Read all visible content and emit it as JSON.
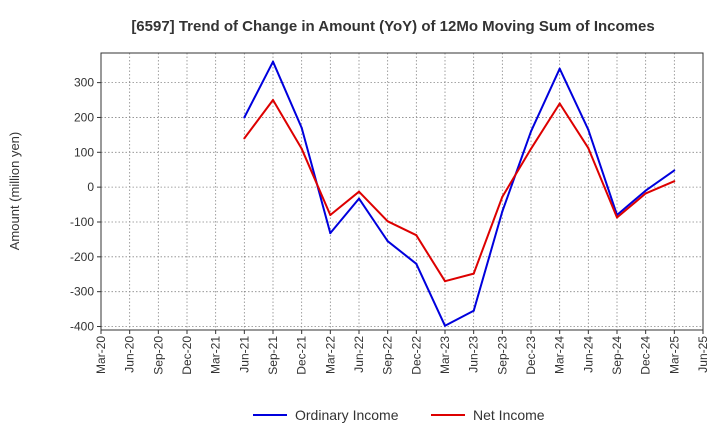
{
  "chart_data": {
    "type": "line",
    "title": "[6597]  Trend of Change in Amount (YoY) of 12Mo Moving Sum of Incomes",
    "xlabel": "",
    "ylabel": "Amount (million yen)",
    "ylim": [
      -410,
      385
    ],
    "yticks": [
      -400,
      -300,
      -200,
      -100,
      0,
      100,
      200,
      300
    ],
    "ytick_labels": [
      "-400",
      "-300",
      "-200",
      "-100",
      "0",
      "100",
      "200",
      "300"
    ],
    "x_tick_labels": [
      "Mar-20",
      "Jun-20",
      "Sep-20",
      "Dec-20",
      "Mar-21",
      "Jun-21",
      "Sep-21",
      "Dec-21",
      "Mar-22",
      "Jun-22",
      "Sep-22",
      "Dec-22",
      "Mar-23",
      "Jun-23",
      "Sep-23",
      "Dec-23",
      "Mar-24",
      "Jun-24",
      "Sep-24",
      "Dec-24",
      "Mar-25",
      "Jun-25"
    ],
    "grid": true,
    "legend_position": "bottom",
    "series": [
      {
        "name": "Ordinary Income",
        "color": "#0000dd",
        "values": [
          null,
          null,
          null,
          null,
          null,
          200,
          360,
          170,
          -132,
          -33,
          -155,
          -220,
          -398,
          -355,
          -70,
          160,
          340,
          165,
          -80,
          -10,
          48,
          null
        ]
      },
      {
        "name": "Net Income",
        "color": "#dd0000",
        "values": [
          null,
          null,
          null,
          null,
          null,
          140,
          250,
          110,
          -80,
          -13,
          -98,
          -138,
          -270,
          -248,
          -28,
          110,
          240,
          112,
          -87,
          -18,
          17,
          null
        ]
      }
    ]
  }
}
